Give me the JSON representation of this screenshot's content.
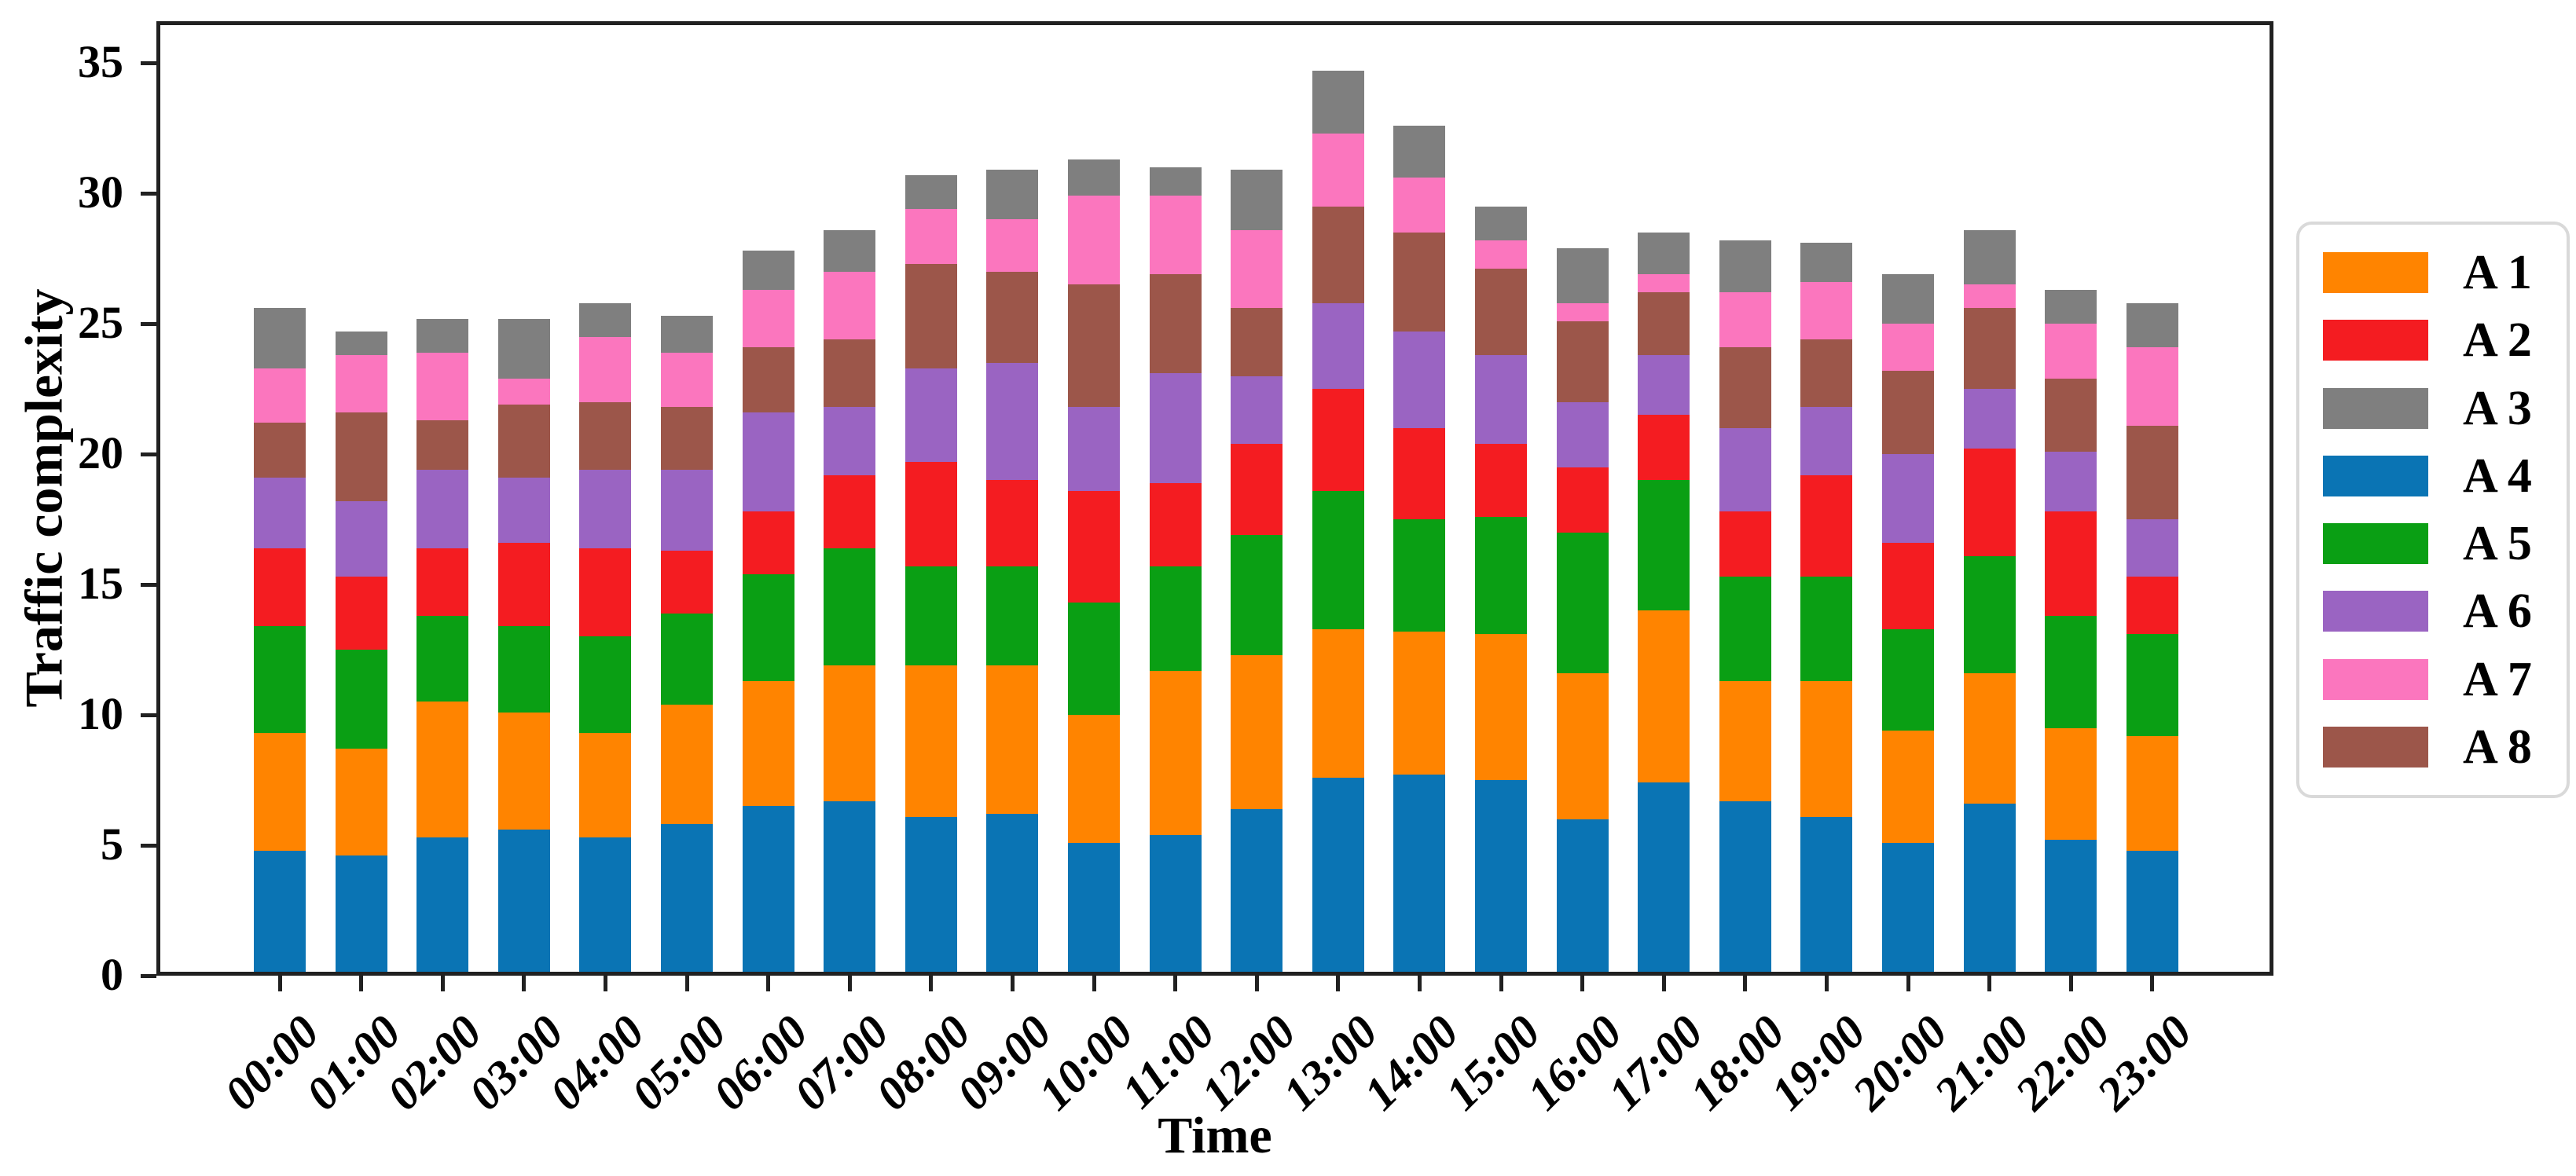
{
  "chart_data": {
    "type": "bar",
    "stacked": true,
    "title": "",
    "xlabel": "Time",
    "ylabel": "Traffic complexity",
    "categories": [
      "00:00",
      "01:00",
      "02:00",
      "03:00",
      "04:00",
      "05:00",
      "06:00",
      "07:00",
      "08:00",
      "09:00",
      "10:00",
      "11:00",
      "12:00",
      "13:00",
      "14:00",
      "15:00",
      "16:00",
      "17:00",
      "18:00",
      "19:00",
      "20:00",
      "21:00",
      "22:00",
      "23:00"
    ],
    "yticks": [
      0,
      5,
      10,
      15,
      20,
      25,
      30,
      35
    ],
    "ylim": [
      0,
      36.6
    ],
    "grid": false,
    "legend_position": "right-outside",
    "stack_order_bottom_to_top": [
      "A 4",
      "A 1",
      "A 5",
      "A 2",
      "A 6",
      "A 8",
      "A 7",
      "A 3"
    ],
    "series": [
      {
        "name": "A 1",
        "color": "#FF8400",
        "values": [
          4.5,
          4.1,
          5.2,
          4.5,
          4.0,
          4.6,
          4.8,
          5.2,
          5.8,
          5.7,
          4.9,
          6.3,
          5.9,
          5.7,
          5.5,
          5.6,
          5.6,
          6.6,
          4.6,
          5.2,
          4.3,
          5.0,
          4.3,
          4.4
        ]
      },
      {
        "name": "A 2",
        "color": "#F41C21",
        "values": [
          3.0,
          2.8,
          2.6,
          3.2,
          3.4,
          2.4,
          2.4,
          2.8,
          4.0,
          3.3,
          4.3,
          3.2,
          3.5,
          3.9,
          3.5,
          2.8,
          2.5,
          2.5,
          2.5,
          3.9,
          3.3,
          4.1,
          4.0,
          2.2
        ]
      },
      {
        "name": "A 3",
        "color": "#7F7F7F",
        "values": [
          2.3,
          0.9,
          1.3,
          2.3,
          1.3,
          1.4,
          1.5,
          1.6,
          1.3,
          1.9,
          1.4,
          1.1,
          2.3,
          2.4,
          2.0,
          1.3,
          2.1,
          1.6,
          2.0,
          1.5,
          1.9,
          2.1,
          1.3,
          1.7
        ]
      },
      {
        "name": "A 4",
        "color": "#0A74B4",
        "values": [
          4.8,
          4.6,
          5.3,
          5.6,
          5.3,
          5.8,
          6.5,
          6.7,
          6.1,
          6.2,
          5.1,
          5.4,
          6.4,
          7.6,
          7.7,
          7.5,
          6.0,
          7.4,
          6.7,
          6.1,
          5.1,
          6.6,
          5.2,
          4.8
        ]
      },
      {
        "name": "A 5",
        "color": "#0A9F14",
        "values": [
          4.1,
          3.8,
          3.3,
          3.3,
          3.7,
          3.5,
          4.1,
          4.5,
          3.8,
          3.8,
          4.3,
          4.0,
          4.6,
          5.3,
          4.3,
          4.5,
          5.4,
          5.0,
          4.0,
          4.0,
          3.9,
          4.5,
          4.3,
          3.9
        ]
      },
      {
        "name": "A 6",
        "color": "#9A64C2",
        "values": [
          2.7,
          2.9,
          3.0,
          2.5,
          3.0,
          3.1,
          3.8,
          2.6,
          3.6,
          4.5,
          3.2,
          4.2,
          2.6,
          3.3,
          3.7,
          3.4,
          2.5,
          2.3,
          3.2,
          2.6,
          3.4,
          2.3,
          2.3,
          2.2
        ]
      },
      {
        "name": "A 7",
        "color": "#FB76BE",
        "values": [
          2.1,
          2.2,
          2.6,
          1.0,
          2.5,
          2.1,
          2.2,
          2.6,
          2.1,
          2.0,
          3.4,
          3.0,
          3.0,
          2.8,
          2.1,
          1.1,
          0.7,
          0.7,
          2.1,
          2.2,
          1.8,
          0.9,
          2.1,
          3.0
        ]
      },
      {
        "name": "A 8",
        "color": "#9C564A",
        "values": [
          2.1,
          3.4,
          1.9,
          2.8,
          2.6,
          2.4,
          2.5,
          2.6,
          4.0,
          3.5,
          4.7,
          3.8,
          2.6,
          3.7,
          3.8,
          3.3,
          3.1,
          2.4,
          3.1,
          2.6,
          3.2,
          3.1,
          2.8,
          3.6
        ]
      }
    ]
  }
}
